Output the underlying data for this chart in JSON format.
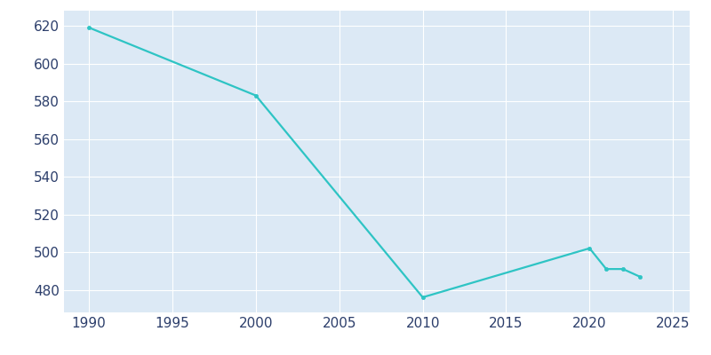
{
  "years": [
    1990,
    2000,
    2010,
    2020,
    2021,
    2022,
    2023
  ],
  "population": [
    619,
    583,
    476,
    502,
    491,
    491,
    487
  ],
  "line_color": "#2ec4c4",
  "fig_bg_color": "#ffffff",
  "plot_bg_color": "#dce9f5",
  "grid_color": "#ffffff",
  "tick_color": "#2c3e6b",
  "xlim": [
    1988.5,
    2026
  ],
  "ylim": [
    468,
    628
  ],
  "yticks": [
    480,
    500,
    520,
    540,
    560,
    580,
    600,
    620
  ],
  "xticks": [
    1990,
    1995,
    2000,
    2005,
    2010,
    2015,
    2020,
    2025
  ],
  "linewidth": 1.6,
  "markersize": 3.0,
  "tick_labelsize": 11,
  "figsize": [
    8.0,
    4.0
  ],
  "dpi": 100
}
